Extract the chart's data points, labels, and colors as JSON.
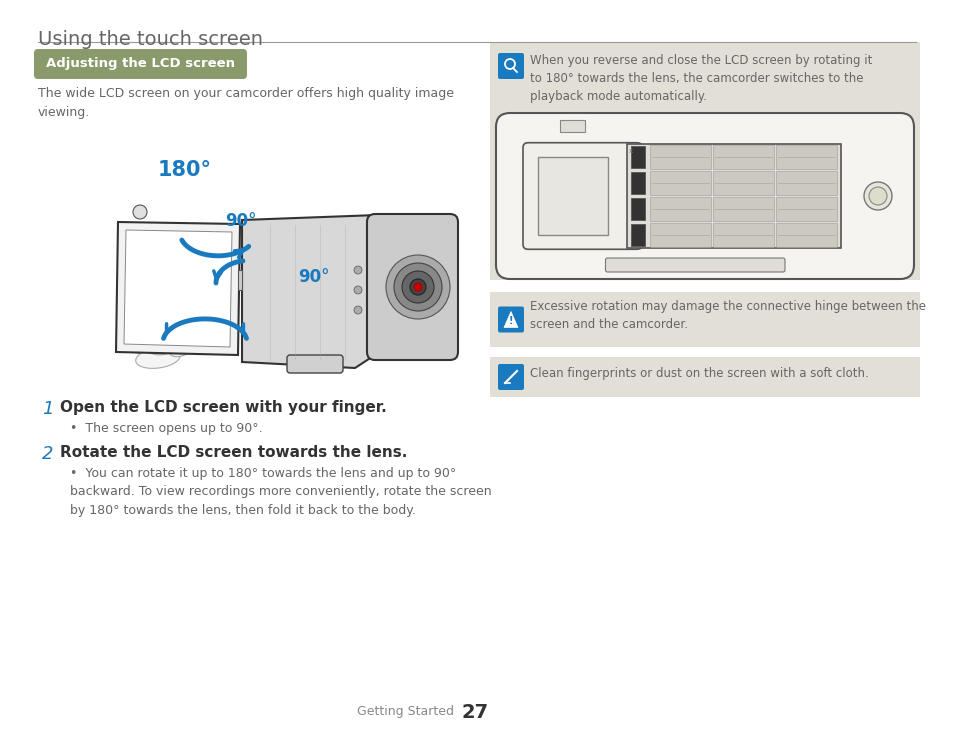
{
  "page_title": "Using the touch screen",
  "section_header": "Adjusting the LCD screen",
  "section_header_bg": "#8a9a6a",
  "section_header_color": "#ffffff",
  "intro_text": "The wide LCD screen on your camcorder offers high quality image\nviewing.",
  "step1_num": "1",
  "step1_text": "Open the LCD screen with your finger.",
  "step1_bullet": "The screen opens up to 90°.",
  "step2_num": "2",
  "step2_text": "Rotate the LCD screen towards the lens.",
  "step2_bullet": "You can rotate it up to 180° towards the lens and up to 90°\nbackward. To view recordings more conveniently, rotate the screen\nby 180° towards the lens, then fold it back to the body.",
  "right_note1": "When you reverse and close the LCD screen by rotating it\nto 180° towards the lens, the camcorder switches to the\nplayback mode automatically.",
  "right_note2": "Excessive rotation may damage the connective hinge between the\nscreen and the camcorder.",
  "right_note3": "Clean fingerprints or dust on the screen with a soft cloth.",
  "label_180": "180°",
  "label_90a": "90°",
  "label_90b": "90°",
  "blue_color": "#1a7abf",
  "text_color": "#666666",
  "dark_text": "#333333",
  "step_num_color": "#1a7abf",
  "bg_color": "#ffffff",
  "right_panel_bg": "#e2dfd6",
  "footer_text": "Getting Started",
  "footer_page": "27",
  "divider_color": "#999999",
  "title_color": "#666666"
}
